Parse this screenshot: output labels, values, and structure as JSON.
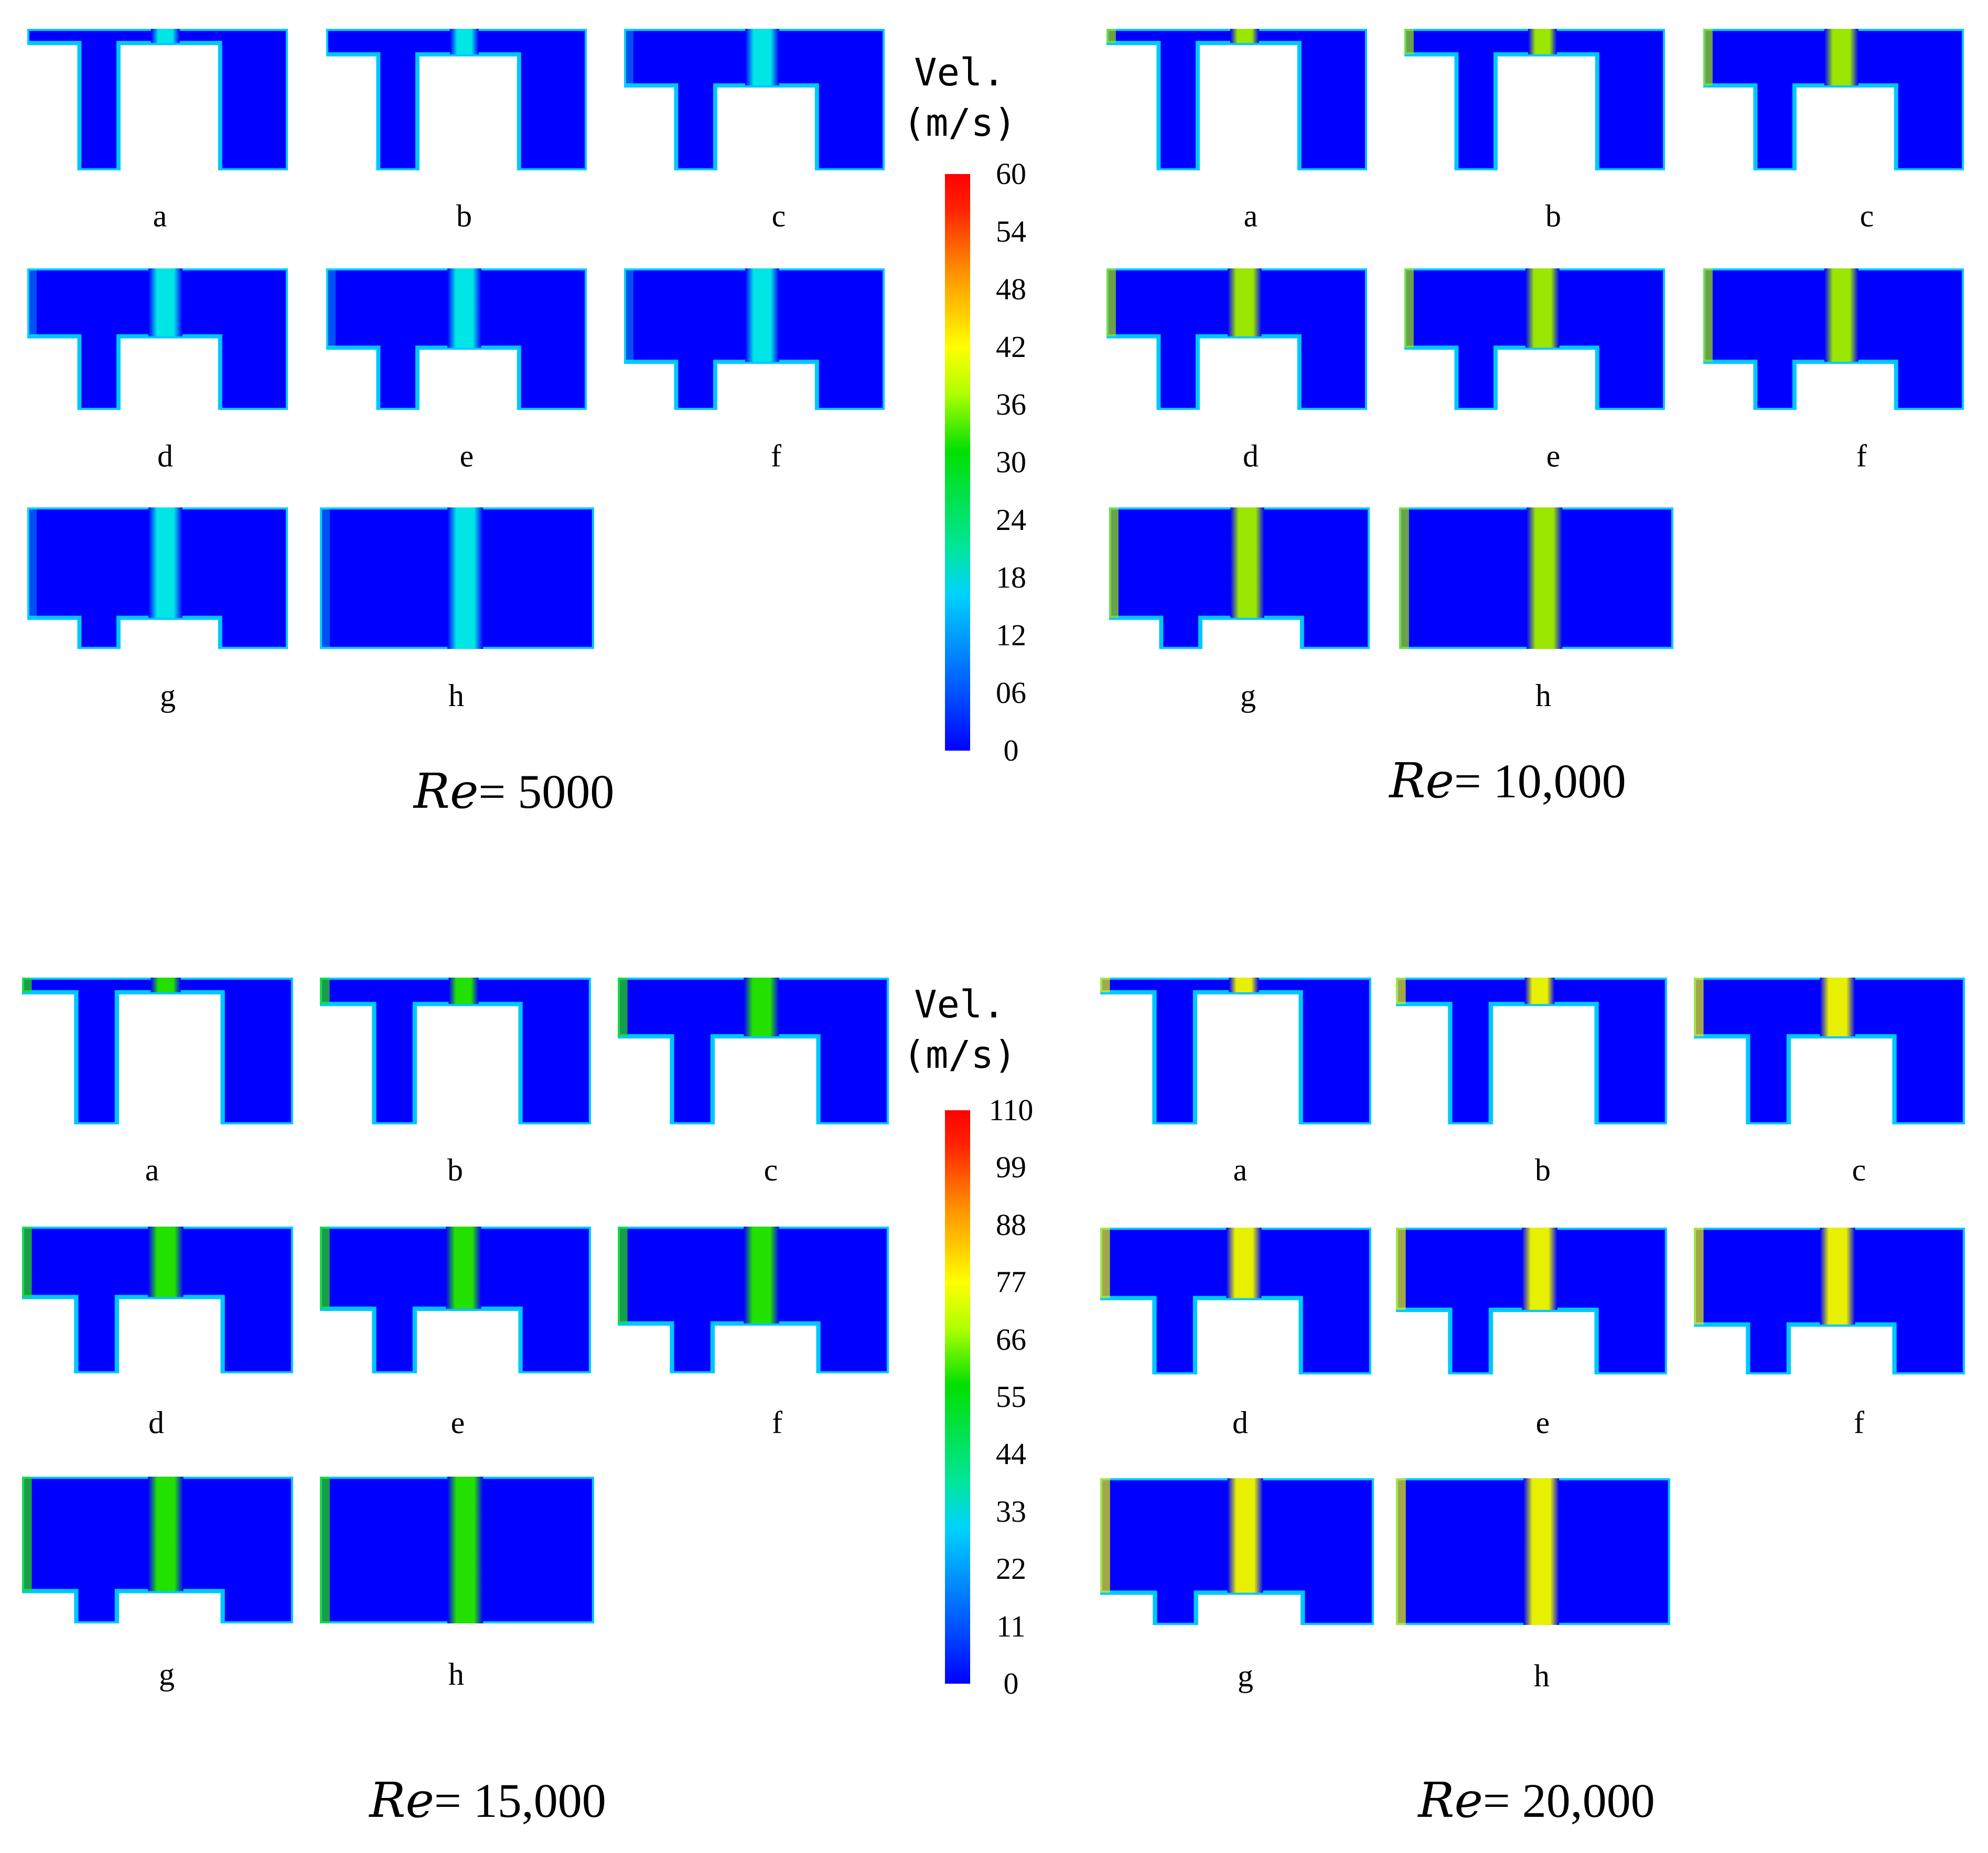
{
  "legend_top": {
    "title_line1": "Vel.",
    "title_line2": "(m/s)",
    "ticks": [
      "60",
      "54",
      "48",
      "42",
      "36",
      "30",
      "24",
      "18",
      "12",
      "06",
      "0"
    ]
  },
  "legend_bottom": {
    "title_line1": "Vel.",
    "title_line2": "(m/s)",
    "ticks": [
      "110",
      "99",
      "88",
      "77",
      "66",
      "55",
      "44",
      "33",
      "22",
      "11",
      "0"
    ]
  },
  "colors": {
    "background_field": "#0000ff",
    "jet_re5000": "#00e6e6",
    "jet_re10000": "#9ae600",
    "jet_re15000": "#22e000",
    "jet_re20000": "#e6f000",
    "boundary_layer": "#00c8ff"
  },
  "groups": [
    {
      "id": "re5000",
      "re_symbol": "Re",
      "re_value": "= 5000",
      "panel_labels": [
        "a",
        "b",
        "c",
        "d",
        "e",
        "f",
        "g",
        "h"
      ]
    },
    {
      "id": "re10000",
      "re_symbol": "Re",
      "re_value": "= 10,000",
      "panel_labels": [
        "a",
        "b",
        "c",
        "d",
        "e",
        "f",
        "g",
        "h"
      ]
    },
    {
      "id": "re15000",
      "re_symbol": "Re",
      "re_value": "= 15,000",
      "panel_labels": [
        "a",
        "b",
        "c",
        "d",
        "e",
        "f",
        "g",
        "h"
      ]
    },
    {
      "id": "re20000",
      "re_symbol": "Re",
      "re_value": "= 20,000",
      "panel_labels": [
        "a",
        "b",
        "c",
        "d",
        "e",
        "f",
        "g",
        "h"
      ]
    }
  ]
}
